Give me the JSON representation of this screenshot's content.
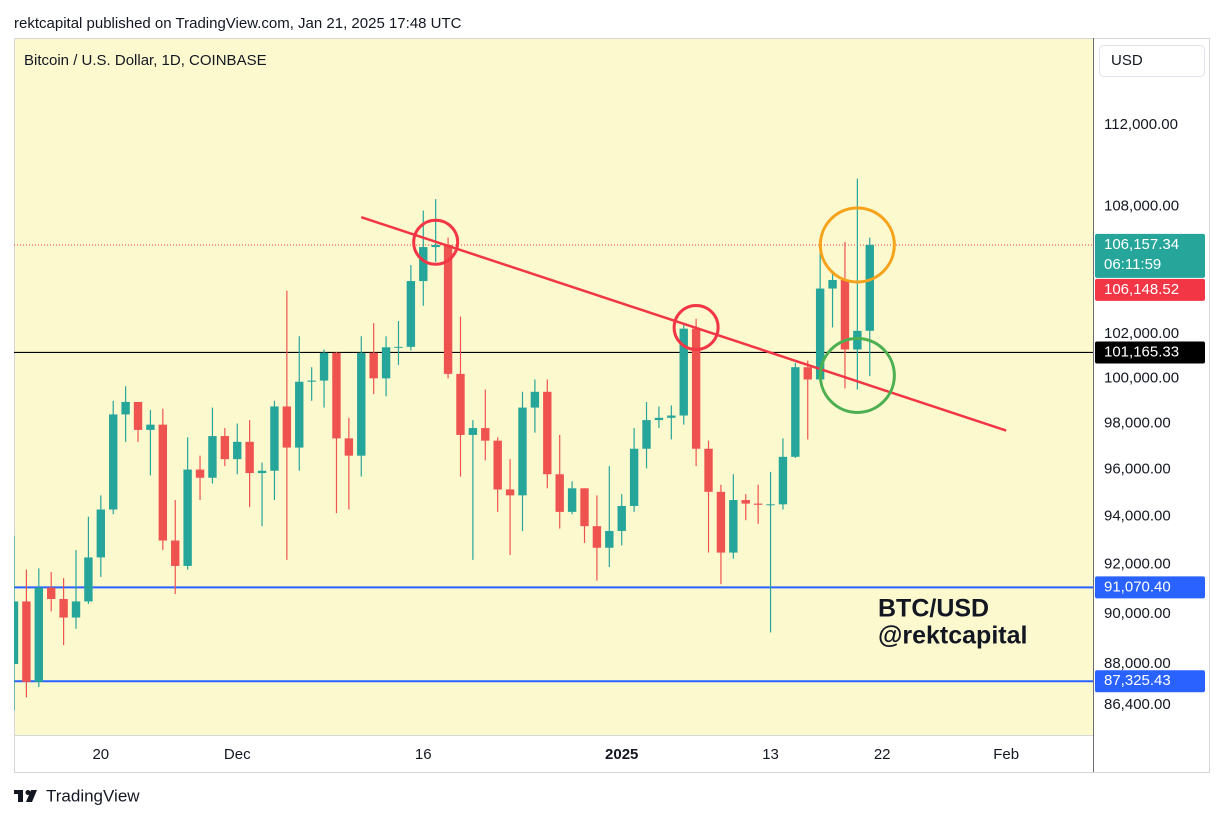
{
  "header": "rektcapital published on TradingView.com, Jan 21, 2025 17:48 UTC",
  "footer_brand": "TradingView",
  "chart_data": {
    "type": "candlestick",
    "title": "Bitcoin / U.S. Dollar, 1D, COINBASE",
    "currency": "USD",
    "x": [
      "2024-11-13",
      "2024-11-14",
      "2024-11-15",
      "2024-11-16",
      "2024-11-17",
      "2024-11-18",
      "2024-11-19",
      "2024-11-20",
      "2024-11-21",
      "2024-11-22",
      "2024-11-23",
      "2024-11-24",
      "2024-11-25",
      "2024-11-26",
      "2024-11-27",
      "2024-11-28",
      "2024-11-29",
      "2024-11-30",
      "2024-12-01",
      "2024-12-02",
      "2024-12-03",
      "2024-12-04",
      "2024-12-05",
      "2024-12-06",
      "2024-12-07",
      "2024-12-08",
      "2024-12-09",
      "2024-12-10",
      "2024-12-11",
      "2024-12-12",
      "2024-12-13",
      "2024-12-14",
      "2024-12-15",
      "2024-12-16",
      "2024-12-17",
      "2024-12-18",
      "2024-12-19",
      "2024-12-20",
      "2024-12-21",
      "2024-12-22",
      "2024-12-23",
      "2024-12-24",
      "2024-12-25",
      "2024-12-26",
      "2024-12-27",
      "2024-12-28",
      "2024-12-29",
      "2024-12-30",
      "2024-12-31",
      "2025-01-01",
      "2025-01-02",
      "2025-01-03",
      "2025-01-04",
      "2025-01-05",
      "2025-01-06",
      "2025-01-07",
      "2025-01-08",
      "2025-01-09",
      "2025-01-10",
      "2025-01-11",
      "2025-01-12",
      "2025-01-13",
      "2025-01-14",
      "2025-01-15",
      "2025-01-16",
      "2025-01-17",
      "2025-01-18",
      "2025-01-19",
      "2025-01-20",
      "2025-01-21"
    ],
    "open": [
      88000,
      90500,
      87300,
      91060,
      90600,
      89850,
      90500,
      92300,
      94300,
      98400,
      98950,
      97720,
      97950,
      93000,
      91950,
      96000,
      95650,
      97450,
      96450,
      97200,
      95850,
      95950,
      98750,
      96950,
      99850,
      99900,
      101150,
      97350,
      96600,
      101150,
      100000,
      101400,
      101420,
      104450,
      106050,
      106150,
      100200,
      97500,
      97800,
      97250,
      95150,
      94900,
      98700,
      99400,
      95800,
      94200,
      95200,
      93600,
      92700,
      93400,
      94450,
      96900,
      98150,
      98250,
      98350,
      102250,
      96900,
      95050,
      92500,
      94700,
      94550,
      94500,
      94520,
      96550,
      100500,
      99950,
      104100,
      104500,
      101300,
      102150
    ],
    "high": [
      93200,
      91800,
      91850,
      91700,
      91450,
      92600,
      94000,
      94900,
      99000,
      99650,
      98950,
      98600,
      98650,
      94700,
      97400,
      96600,
      98700,
      97800,
      98000,
      98150,
      96300,
      99000,
      104000,
      101900,
      100500,
      101300,
      101200,
      98250,
      101900,
      102500,
      101900,
      102600,
      105200,
      107800,
      108350,
      106500,
      102800,
      98150,
      99500,
      97400,
      96450,
      99400,
      99950,
      99950,
      97500,
      95500,
      95200,
      94900,
      96150,
      94950,
      97800,
      98950,
      98750,
      98800,
      102500,
      102700,
      97250,
      95350,
      95800,
      94950,
      95350,
      95900,
      97350,
      100700,
      100800,
      105900,
      104950,
      106300,
      109350,
      106500
    ],
    "low": [
      86200,
      86700,
      87100,
      90100,
      88750,
      89400,
      90400,
      91500,
      94100,
      97200,
      97200,
      95750,
      92600,
      90800,
      91800,
      94700,
      95400,
      96150,
      95800,
      94400,
      93600,
      94700,
      92200,
      95950,
      99000,
      98700,
      94150,
      94300,
      95700,
      99300,
      99200,
      100600,
      101250,
      103300,
      105350,
      100000,
      95700,
      92200,
      96400,
      94200,
      92400,
      93400,
      97600,
      95200,
      93500,
      94100,
      92900,
      91350,
      91900,
      92800,
      94200,
      96050,
      97800,
      97300,
      97950,
      96150,
      92500,
      91200,
      92250,
      93850,
      93700,
      89250,
      94300,
      96500,
      97300,
      99950,
      102300,
      99550,
      99500,
      100100
    ],
    "close": [
      90500,
      87300,
      91060,
      90600,
      89850,
      90500,
      92300,
      94300,
      98400,
      98950,
      97720,
      97950,
      93000,
      91950,
      96000,
      95650,
      97450,
      96450,
      97200,
      95850,
      95950,
      98750,
      96950,
      99850,
      99900,
      101150,
      97350,
      96600,
      101150,
      100000,
      101400,
      101420,
      104450,
      106050,
      106150,
      100200,
      97500,
      97800,
      97250,
      95150,
      94900,
      98700,
      99400,
      95800,
      94200,
      95200,
      93600,
      92700,
      93400,
      94450,
      96900,
      98150,
      98250,
      98350,
      102250,
      96900,
      95050,
      92500,
      94700,
      94550,
      94500,
      94520,
      96550,
      100500,
      99950,
      104100,
      104500,
      101300,
      102150,
      106157.34
    ],
    "up_color": "#26a69a",
    "down_color": "#ef5350",
    "xlim": [
      "2024-11-13",
      "2025-02-08"
    ],
    "xticks": [
      {
        "value": "2024-11-20",
        "label": "20"
      },
      {
        "value": "2024-12-01",
        "label": "Dec"
      },
      {
        "value": "2024-12-16",
        "label": "16"
      },
      {
        "value": "2025-01-01",
        "label": "2025",
        "bold": true
      },
      {
        "value": "2025-01-13",
        "label": "13"
      },
      {
        "value": "2025-01-22",
        "label": "22"
      },
      {
        "value": "2025-02-01",
        "label": "Feb"
      }
    ],
    "ylim": [
      85250,
      116450
    ],
    "log_scale": true,
    "yticks": [
      {
        "value": 112000,
        "label": "112,000.00"
      },
      {
        "value": 108000,
        "label": "108,000.00"
      },
      {
        "value": 102000,
        "label": "102,000.00"
      },
      {
        "value": 100000,
        "label": "100,000.00"
      },
      {
        "value": 98000,
        "label": "98,000.00"
      },
      {
        "value": 96000,
        "label": "96,000.00"
      },
      {
        "value": 94000,
        "label": "94,000.00"
      },
      {
        "value": 92000,
        "label": "92,000.00"
      },
      {
        "value": 90000,
        "label": "90,000.00"
      },
      {
        "value": 88000,
        "label": "88,000.00"
      },
      {
        "value": 86400,
        "label": "86,400.00"
      }
    ],
    "price_lines": [
      {
        "value": 106157.34,
        "label": "106,157.34",
        "color": "#26a69a",
        "style": "none"
      },
      {
        "value": 106148.52,
        "label": "106,148.52",
        "color": "#f23645",
        "style": "dotted"
      },
      {
        "value": 101165.33,
        "label": "101,165.33",
        "color": "#000000",
        "style": "solid"
      },
      {
        "value": 91070.4,
        "label": "91,070.40",
        "color": "#2962ff",
        "style": "solid"
      },
      {
        "value": 87325.43,
        "label": "87,325.43",
        "color": "#2962ff",
        "style": "solid"
      }
    ],
    "countdown": "06:11:59",
    "trendline": {
      "x": [
        "2024-12-11",
        "2025-02-01"
      ],
      "y": [
        107480,
        97690
      ],
      "color": "#f23645"
    },
    "circles": [
      {
        "x": "2024-12-17",
        "y": 106280,
        "color": "#f23645"
      },
      {
        "x": "2025-01-07",
        "y": 102300,
        "color": "#f23645"
      },
      {
        "x": "2025-01-20",
        "y": 106150,
        "color": "#f7a21b"
      },
      {
        "x": "2025-01-20",
        "y": 100130,
        "color": "#4caf50"
      }
    ],
    "annotations": [
      "BTC/USD",
      "@rektcapital"
    ]
  }
}
